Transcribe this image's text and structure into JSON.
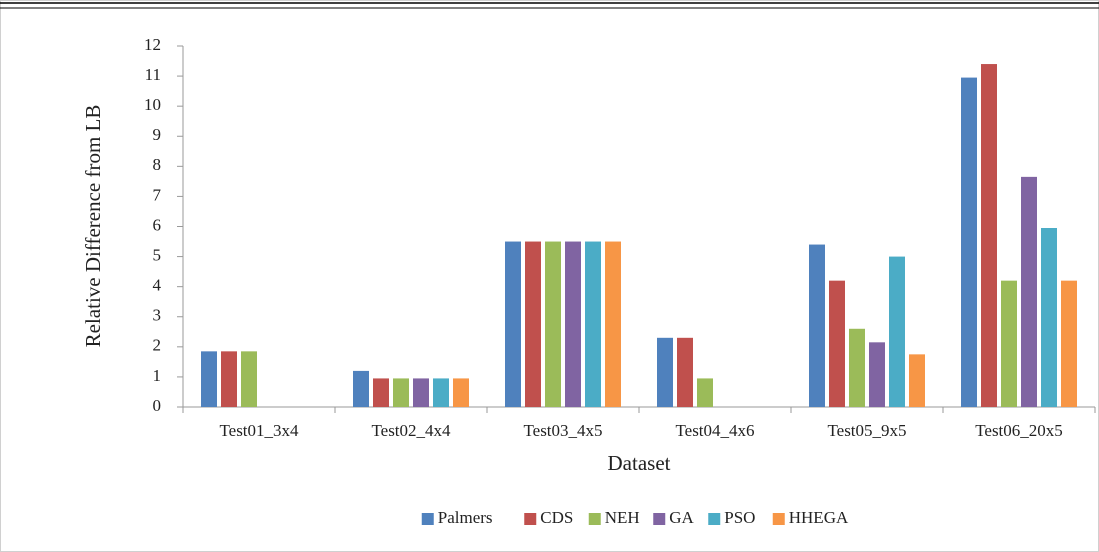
{
  "chart_data": {
    "type": "bar",
    "xlabel": "Dataset",
    "ylabel": "Relative  Difference from LB",
    "categories": [
      "Test01_3x4",
      "Test02_4x4",
      "Test03_4x5",
      "Test04_4x6",
      "Test05_9x5",
      "Test06_20x5"
    ],
    "series": [
      {
        "name": "Palmers",
        "color": "#4f81bd",
        "values": [
          1.85,
          1.2,
          5.5,
          2.3,
          5.4,
          10.95
        ]
      },
      {
        "name": "CDS",
        "color": "#c0504d",
        "values": [
          1.85,
          0.95,
          5.5,
          2.3,
          4.2,
          11.4
        ]
      },
      {
        "name": "NEH",
        "color": "#9bbb59",
        "values": [
          1.85,
          0.95,
          5.5,
          0.95,
          2.6,
          4.2
        ]
      },
      {
        "name": "GA",
        "color": "#8064a2",
        "values": [
          0,
          0.95,
          5.5,
          0,
          2.15,
          7.65
        ]
      },
      {
        "name": "PSO",
        "color": "#4bacc6",
        "values": [
          0,
          0.95,
          5.5,
          0,
          5.0,
          5.95
        ]
      },
      {
        "name": "HHEGA",
        "color": "#f79646",
        "values": [
          0,
          0.95,
          5.5,
          0,
          1.75,
          4.2
        ]
      }
    ],
    "ylim": [
      0,
      12
    ],
    "yticks": [
      0,
      1,
      2,
      3,
      4,
      5,
      6,
      7,
      8,
      9,
      10,
      11,
      12
    ],
    "legend": "bottom"
  }
}
